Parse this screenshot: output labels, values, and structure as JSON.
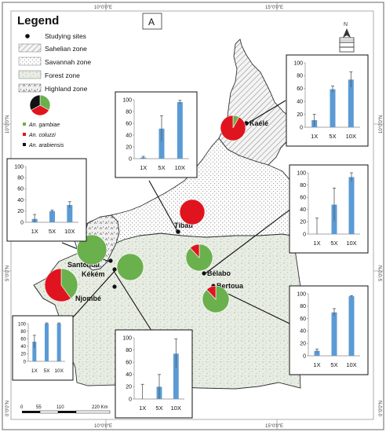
{
  "panel_letter": "A",
  "legend": {
    "title": "Legend",
    "items": [
      {
        "label": "Studying sites",
        "symbol": "dot"
      },
      {
        "label": "Sahelian zone",
        "symbol": "hatch"
      },
      {
        "label": "Savannah zone",
        "symbol": "dots"
      },
      {
        "label": "Forest zone",
        "symbol": "forest"
      },
      {
        "label": "Highland zone",
        "symbol": "highland"
      }
    ],
    "species": [
      {
        "label": "An. gambiae",
        "color": "#6ab04c"
      },
      {
        "label": "An. coluzzi",
        "color": "#e0141e"
      },
      {
        "label": "An. arabiensis",
        "color": "#111111"
      }
    ]
  },
  "graticule": {
    "top_labels": [
      "10°0'0\"E",
      "15°0'0\"E"
    ],
    "bottom_labels": [
      "10°0'0\"E",
      "15°0'0\"E"
    ],
    "left_labels": [
      "10°0'0\"N",
      "5°0'0\"N",
      "0°0'0\"N"
    ],
    "right_labels": [
      "10°0'0\"N",
      "5°0'0\"N",
      "0°0'0\"N"
    ]
  },
  "scale_bar": {
    "ticks": [
      "0",
      "55",
      "110",
      "220 Km"
    ]
  },
  "sites": [
    {
      "name": "Kaélé"
    },
    {
      "name": "Tibati"
    },
    {
      "name": "Santchou"
    },
    {
      "name": "Kékém"
    },
    {
      "name": "Njombé"
    },
    {
      "name": "Bélabo"
    },
    {
      "name": "Bertoua"
    }
  ],
  "pies": [
    {
      "site": "Legend",
      "slices": [
        {
          "species": "An. gambiae",
          "fraction": 0.33
        },
        {
          "species": "An. coluzzi",
          "fraction": 0.34
        },
        {
          "species": "An. arabiensis",
          "fraction": 0.33
        }
      ]
    },
    {
      "site": "Kaélé",
      "slices": [
        {
          "species": "An. gambiae",
          "fraction": 0.08
        },
        {
          "species": "An. coluzzi",
          "fraction": 0.92
        }
      ]
    },
    {
      "site": "Tibati",
      "slices": [
        {
          "species": "An. coluzzi",
          "fraction": 1.0
        }
      ]
    },
    {
      "site": "Santchou",
      "slices": [
        {
          "species": "An. gambiae",
          "fraction": 1.0
        }
      ]
    },
    {
      "site": "Kékém",
      "slices": [
        {
          "species": "An. gambiae",
          "fraction": 1.0
        }
      ]
    },
    {
      "site": "Njombé",
      "slices": [
        {
          "species": "An. gambiae",
          "fraction": 0.4
        },
        {
          "species": "An. coluzzi",
          "fraction": 0.6
        }
      ]
    },
    {
      "site": "Bélabo",
      "slices": [
        {
          "species": "An. gambiae",
          "fraction": 0.88
        },
        {
          "species": "An. coluzzi",
          "fraction": 0.12
        }
      ]
    },
    {
      "site": "Bertoua",
      "slices": [
        {
          "species": "An. gambiae",
          "fraction": 0.88
        },
        {
          "species": "An. coluzzi",
          "fraction": 0.12
        }
      ]
    }
  ],
  "chart_data": [
    {
      "type": "bar",
      "site": "Kaélé",
      "categories": [
        "1X",
        "5X",
        "10X"
      ],
      "values": [
        11,
        59,
        74
      ],
      "errors": [
        9,
        5,
        12
      ],
      "ylim": [
        0,
        100
      ],
      "yticks": [
        0,
        20,
        40,
        60,
        80,
        100
      ]
    },
    {
      "type": "bar",
      "site": "Tibati",
      "categories": [
        "1X",
        "5X",
        "10X"
      ],
      "values": [
        2,
        51,
        96
      ],
      "errors": [
        2,
        22,
        3
      ],
      "ylim": [
        0,
        100
      ],
      "yticks": [
        0,
        20,
        40,
        60,
        80,
        100
      ]
    },
    {
      "type": "bar",
      "site": "Santchou",
      "categories": [
        "1X",
        "5X",
        "10X"
      ],
      "values": [
        6,
        20,
        31
      ],
      "errors": [
        8,
        2,
        6
      ],
      "ylim": [
        0,
        100
      ],
      "yticks": [
        0,
        20,
        40,
        60,
        80,
        100
      ]
    },
    {
      "type": "bar",
      "site": "Bélabo",
      "categories": [
        "1X",
        "5X",
        "10X"
      ],
      "values": [
        0,
        48,
        93
      ],
      "errors": [
        26,
        27,
        7
      ],
      "ylim": [
        0,
        100
      ],
      "yticks": [
        0,
        20,
        40,
        60,
        80,
        100
      ]
    },
    {
      "type": "bar",
      "site": "Njombé",
      "categories": [
        "1X",
        "5X",
        "10X"
      ],
      "values": [
        52,
        100,
        100
      ],
      "errors": [
        17,
        2,
        2
      ],
      "ylim": [
        0,
        100
      ],
      "yticks": [
        0,
        20,
        40,
        60,
        80,
        100
      ]
    },
    {
      "type": "bar",
      "site": "Kékém",
      "categories": [
        "1X",
        "5X",
        "10X"
      ],
      "values": [
        0,
        20,
        74
      ],
      "errors": [
        24,
        20,
        24
      ],
      "ylim": [
        0,
        100
      ],
      "yticks": [
        0,
        20,
        40,
        60,
        80,
        100
      ]
    },
    {
      "type": "bar",
      "site": "Bertoua",
      "categories": [
        "1X",
        "5X",
        "10X"
      ],
      "values": [
        8,
        70,
        96
      ],
      "errors": [
        3,
        6,
        1
      ],
      "ylim": [
        0,
        100
      ],
      "yticks": [
        0,
        20,
        40,
        60,
        80,
        100
      ]
    }
  ],
  "colors": {
    "bar": "#5b9bd5",
    "gambiae": "#6ab04c",
    "coluzzi": "#e0141e",
    "arabiensis": "#111111",
    "sahel_fill": "#f2f2f2",
    "savannah_fill": "#ffffff",
    "forest_fill": "#e9efe4"
  }
}
